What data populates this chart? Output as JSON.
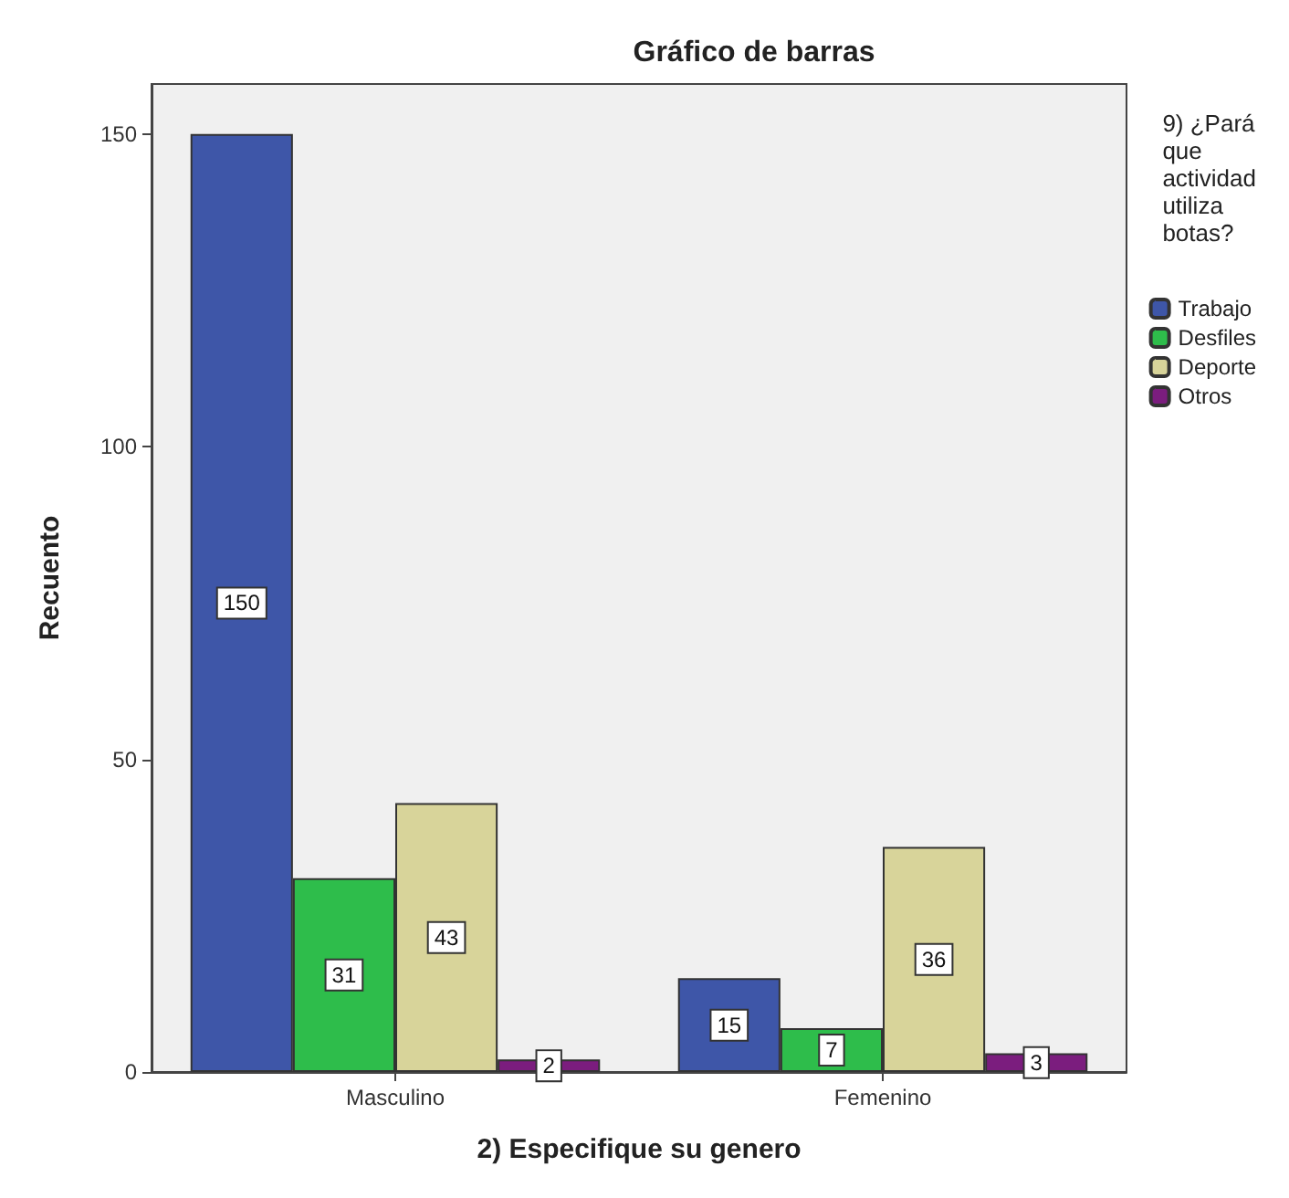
{
  "chart_data": {
    "type": "bar",
    "title": "Gráfico de barras",
    "xlabel": "2) Especifique su genero",
    "ylabel": "Recuento",
    "legend_title": "9) ¿Pará\nque\nactividad\nutiliza\nbotas?",
    "categories": [
      "Masculino",
      "Femenino"
    ],
    "series": [
      {
        "name": "Trabajo",
        "color": "#3e56a8",
        "values": [
          150,
          15
        ]
      },
      {
        "name": "Desfiles",
        "color": "#2ebd4b",
        "values": [
          31,
          7
        ]
      },
      {
        "name": "Deporte",
        "color": "#d8d49a",
        "values": [
          43,
          36
        ]
      },
      {
        "name": "Otros",
        "color": "#7b1d7e",
        "values": [
          2,
          3
        ]
      }
    ],
    "ylim": [
      0,
      158
    ],
    "yticks": [
      0,
      50,
      100,
      150
    ],
    "grid": false,
    "legend": "right",
    "data_labels": true
  }
}
